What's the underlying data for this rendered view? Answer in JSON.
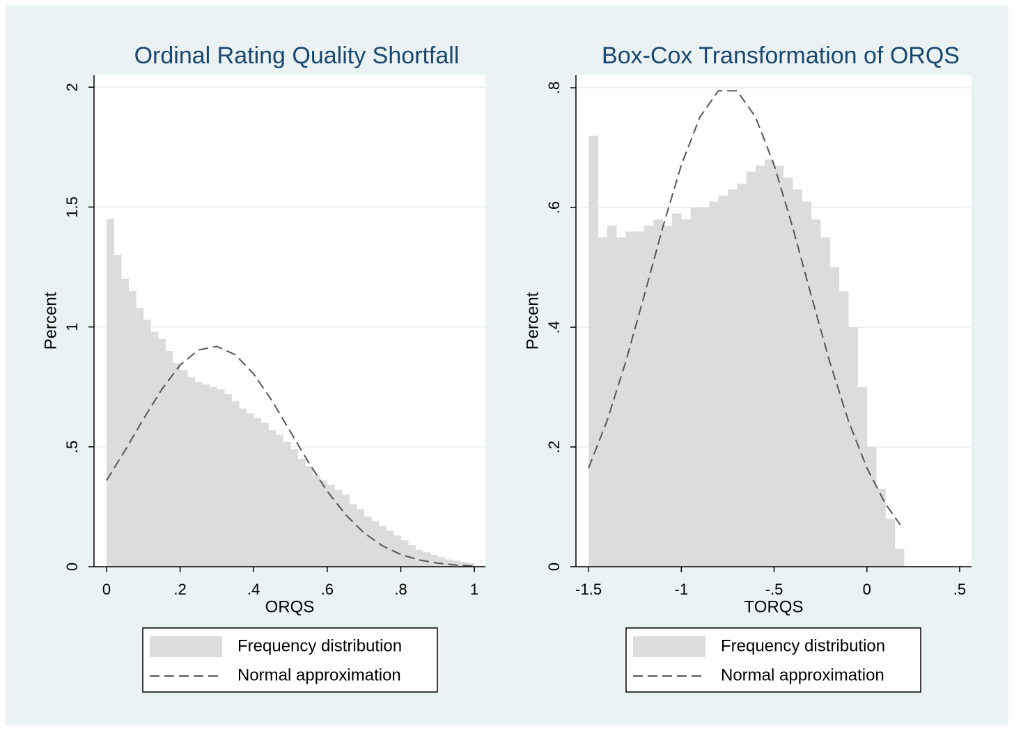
{
  "chart_data": [
    {
      "type": "histogram",
      "title": "Ordinal Rating Quality Shortfall",
      "x_label": "ORQS",
      "y_label": "Percent",
      "xlim": [
        -0.034,
        1.03
      ],
      "ylim": [
        0,
        2.05
      ],
      "xticks": [
        0,
        {
          "value": 0.2,
          "label": ".2"
        },
        {
          "value": 0.4,
          "label": ".4"
        },
        {
          "value": 0.6,
          "label": ".6"
        },
        {
          "value": 0.8,
          "label": ".8"
        },
        1
      ],
      "yticks": [
        0,
        {
          "value": 0.5,
          "label": ".5"
        },
        1,
        1.5,
        2
      ],
      "grid": true,
      "series": [
        {
          "name": "Frequency distribution",
          "type": "histogram",
          "color": "#dcdcdc",
          "bins": [
            0,
            0.02,
            0.04,
            0.06,
            0.08,
            0.1,
            0.12,
            0.14,
            0.16,
            0.18,
            0.2,
            0.22,
            0.24,
            0.26,
            0.28,
            0.3,
            0.32,
            0.34,
            0.36,
            0.38,
            0.4,
            0.42,
            0.44,
            0.46,
            0.48,
            0.5,
            0.52,
            0.54,
            0.56,
            0.58,
            0.6,
            0.62,
            0.64,
            0.66,
            0.68,
            0.7,
            0.72,
            0.74,
            0.76,
            0.78,
            0.8,
            0.82,
            0.84,
            0.86,
            0.88,
            0.9,
            0.92,
            0.94,
            0.96,
            0.98,
            1
          ],
          "values": [
            1.45,
            1.3,
            1.2,
            1.15,
            1.08,
            1.03,
            0.98,
            0.95,
            0.9,
            0.85,
            0.82,
            0.79,
            0.77,
            0.76,
            0.75,
            0.74,
            0.72,
            0.69,
            0.66,
            0.64,
            0.62,
            0.6,
            0.57,
            0.55,
            0.52,
            0.49,
            0.45,
            0.42,
            0.38,
            0.36,
            0.34,
            0.32,
            0.3,
            0.26,
            0.24,
            0.21,
            0.19,
            0.17,
            0.15,
            0.13,
            0.11,
            0.09,
            0.07,
            0.06,
            0.05,
            0.04,
            0.03,
            0.025,
            0.02,
            0.015
          ]
        },
        {
          "name": "Normal approximation",
          "type": "line",
          "color": "#555555",
          "line_style": "dashed",
          "x": [
            0,
            0.05,
            0.1,
            0.15,
            0.2,
            0.25,
            0.3,
            0.35,
            0.4,
            0.45,
            0.5,
            0.55,
            0.6,
            0.65,
            0.7,
            0.75,
            0.8,
            0.85,
            0.9,
            0.95,
            1
          ],
          "values": [
            0.36,
            0.484,
            0.615,
            0.739,
            0.841,
            0.904,
            0.919,
            0.884,
            0.804,
            0.692,
            0.563,
            0.433,
            0.315,
            0.217,
            0.141,
            0.087,
            0.051,
            0.028,
            0.015,
            0.007,
            0.003
          ]
        }
      ]
    },
    {
      "type": "histogram",
      "title": "Box-Cox Transformation of ORQS",
      "x_label": "TORQS",
      "y_label": "Percent",
      "xlim": [
        -1.568,
        0.564
      ],
      "ylim": [
        0,
        0.821
      ],
      "xticks": [
        -1.5,
        -1,
        {
          "value": -0.5,
          "label": "-.5"
        },
        0,
        {
          "value": 0.5,
          "label": ".5"
        }
      ],
      "yticks": [
        0,
        {
          "value": 0.2,
          "label": ".2"
        },
        {
          "value": 0.4,
          "label": ".4"
        },
        {
          "value": 0.6,
          "label": ".6"
        },
        {
          "value": 0.8,
          "label": ".8"
        }
      ],
      "grid": true,
      "series": [
        {
          "name": "Frequency distribution",
          "type": "histogram",
          "color": "#dcdcdc",
          "bins": [
            -1.5,
            -1.45,
            -1.4,
            -1.35,
            -1.3,
            -1.25,
            -1.2,
            -1.15,
            -1.1,
            -1.05,
            -1,
            -0.95,
            -0.9,
            -0.85,
            -0.8,
            -0.75,
            -0.7,
            -0.65,
            -0.6,
            -0.55,
            -0.5,
            -0.45,
            -0.4,
            -0.35,
            -0.3,
            -0.25,
            -0.2,
            -0.15,
            -0.1,
            -0.05,
            0,
            0.05,
            0.1,
            0.15,
            0.2
          ],
          "values": [
            0.72,
            0.55,
            0.57,
            0.55,
            0.56,
            0.56,
            0.57,
            0.58,
            0.57,
            0.59,
            0.58,
            0.6,
            0.6,
            0.61,
            0.62,
            0.63,
            0.64,
            0.66,
            0.67,
            0.68,
            0.67,
            0.65,
            0.63,
            0.61,
            0.58,
            0.55,
            0.5,
            0.46,
            0.4,
            0.3,
            0.2,
            0.13,
            0.08,
            0.03
          ]
        },
        {
          "name": "Normal approximation",
          "type": "line",
          "color": "#555555",
          "line_style": "dashed",
          "x": [
            -1.5,
            -1.4,
            -1.3,
            -1.2,
            -1.1,
            -1,
            -0.9,
            -0.8,
            -0.7,
            -0.6,
            -0.5,
            -0.4,
            -0.3,
            -0.2,
            -0.1,
            0,
            0.1,
            0.18
          ],
          "values": [
            0.165,
            0.244,
            0.342,
            0.453,
            0.567,
            0.671,
            0.751,
            0.795,
            0.795,
            0.751,
            0.671,
            0.567,
            0.453,
            0.342,
            0.244,
            0.165,
            0.105,
            0.07
          ]
        }
      ]
    }
  ]
}
